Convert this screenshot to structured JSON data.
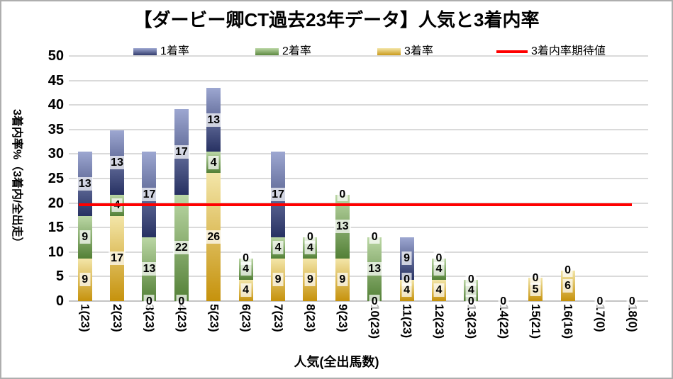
{
  "title": "【ダービー卿CT過去23年データ】人気と3着内率",
  "colors": {
    "bar_blue_top": "#9da7d1",
    "bar_blue_bottom": "#273162",
    "bar_green_top": "#bbd7a5",
    "bar_green_bottom": "#538036",
    "bar_gold_top": "#f3e6a9",
    "bar_gold_bottom": "#c6920c",
    "expected_line": "#ff0000",
    "gridline": "#dadada",
    "label_background": "rgba(255,255,255,0.72)"
  },
  "chart_data": {
    "type": "bar",
    "subtype": "stacked-column-with-line",
    "title": "【ダービー卿CT過去23年データ】人気と3着内率",
    "xlabel": "人気(全出馬数)",
    "ylabel": "3着内率%（3着内/全出走）",
    "ylim": [
      0,
      50
    ],
    "yticks": [
      0,
      5,
      10,
      15,
      20,
      25,
      30,
      35,
      40,
      45,
      50
    ],
    "grid": true,
    "legend_position": "top",
    "categories": [
      "1(23)",
      "2(23)",
      "3(23)",
      "4(23)",
      "5(23)",
      "6(23)",
      "7(23)",
      "8(23)",
      "9(23)",
      "10(23)",
      "11(23)",
      "12(23)",
      "13(23)",
      "14(22)",
      "15(21)",
      "16(16)",
      "17(0)",
      "18(0)"
    ],
    "series": [
      {
        "name": "1着率",
        "stack_order": "top",
        "values": [
          13.04,
          13.04,
          17.39,
          17.39,
          13.04,
          0,
          17.39,
          0,
          0,
          0,
          8.7,
          0,
          0,
          0,
          0,
          0,
          0,
          0
        ],
        "labels": [
          "13",
          "13",
          "17",
          "17",
          "13",
          "0",
          "17",
          "0",
          "0",
          "0",
          "9",
          "0",
          "0",
          "0",
          "0",
          "0",
          "0",
          "0"
        ]
      },
      {
        "name": "2着率",
        "stack_order": "middle",
        "values": [
          8.7,
          4.35,
          13.04,
          21.74,
          4.35,
          4.35,
          4.35,
          4.35,
          13.04,
          13.04,
          0,
          4.35,
          4.35,
          0,
          0,
          0,
          0,
          0
        ],
        "labels": [
          "9",
          "4",
          "13",
          "22",
          "4",
          "4",
          "4",
          "4",
          "13",
          "13",
          "0",
          "4",
          "4",
          "0",
          "0",
          "0",
          "0",
          "0"
        ]
      },
      {
        "name": "3着率",
        "stack_order": "bottom",
        "values": [
          8.7,
          17.39,
          0,
          0,
          26.09,
          4.35,
          8.7,
          8.7,
          8.7,
          0,
          4.35,
          4.35,
          0,
          0,
          4.76,
          6.25,
          0,
          0
        ],
        "labels": [
          "9",
          "17",
          "0",
          "0",
          "26",
          "4",
          "9",
          "9",
          "9",
          "0",
          "4",
          "4",
          "0",
          "0",
          "5",
          "6",
          "0",
          "0"
        ]
      }
    ],
    "line": {
      "name": "3着内率期待値",
      "value": 19.6,
      "spans_categories": [
        1,
        18
      ]
    }
  }
}
